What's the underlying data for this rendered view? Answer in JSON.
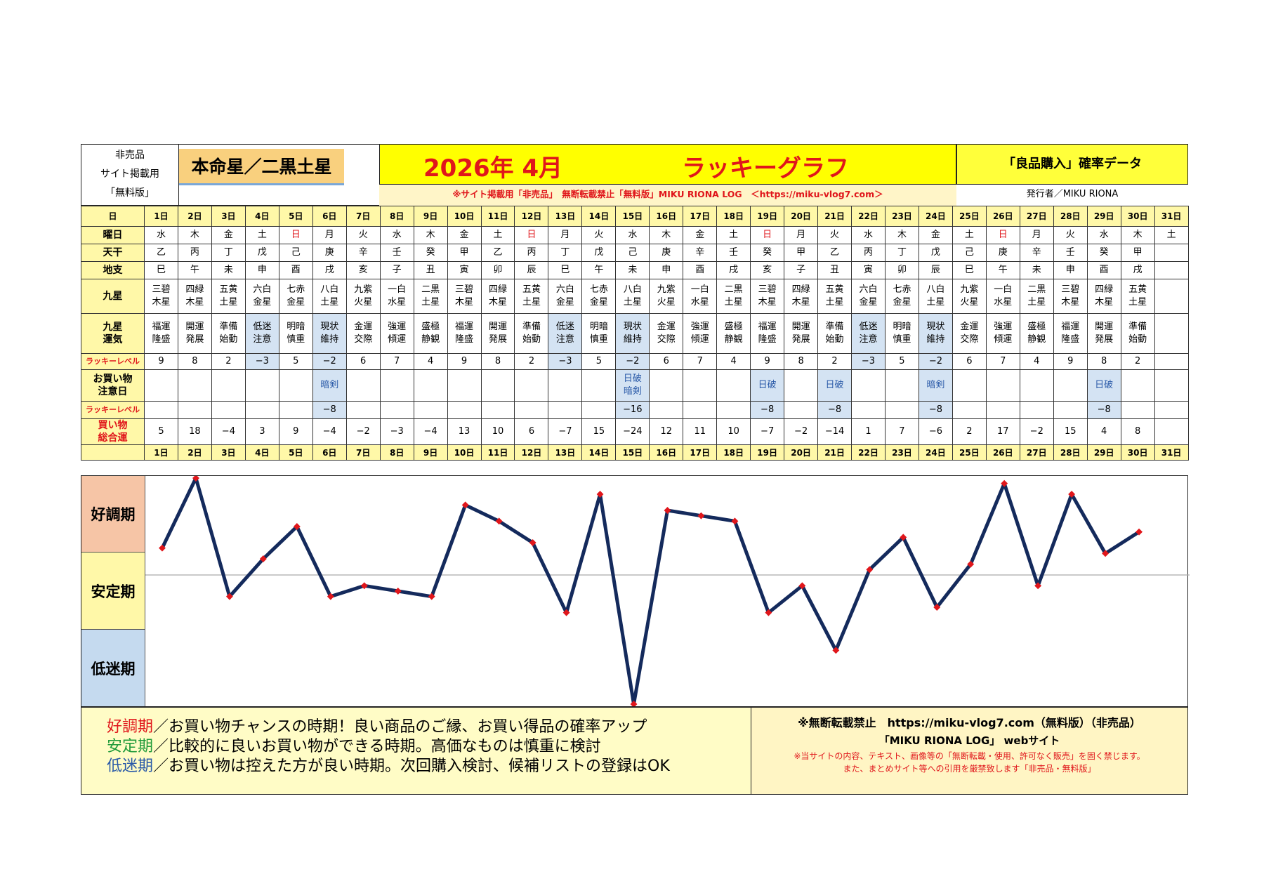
{
  "header": {
    "left_lines": [
      "非売品",
      "サイト掲載用",
      "「無料版」"
    ],
    "honmei": "本命星／二黒土星",
    "year_month": "2026年 4月",
    "graph_title": "ラッキーグラフ",
    "right_title": "「良品購入」確率データ",
    "notice": "※サイト掲載用「非売品」　無断転載禁止「無料版」MIKU RIONA LOG　＜https://miku-vlog7.com＞",
    "publisher": "発行者／MIKU RIONA"
  },
  "row_labels": {
    "day": "日",
    "weekday": "曜日",
    "tenkan": "天干",
    "chishi": "地支",
    "kyusei": [
      "九",
      "星"
    ],
    "kyusei_unki": [
      "九星",
      "運気"
    ],
    "lucky_level": "ラッキーレベル",
    "shopping_caution": [
      "お買い物",
      "注意日"
    ],
    "lucky_level2": "ラッキーレベル",
    "total": [
      "買い物",
      "総合運"
    ]
  },
  "days": [
    "1日",
    "2日",
    "3日",
    "4日",
    "5日",
    "6日",
    "7日",
    "8日",
    "9日",
    "10日",
    "11日",
    "12日",
    "13日",
    "14日",
    "15日",
    "16日",
    "17日",
    "18日",
    "19日",
    "20日",
    "21日",
    "22日",
    "23日",
    "24日",
    "25日",
    "26日",
    "27日",
    "28日",
    "29日",
    "30日",
    "31日"
  ],
  "weekdays": [
    "水",
    "木",
    "金",
    "土",
    "日",
    "月",
    "火",
    "水",
    "木",
    "金",
    "土",
    "日",
    "月",
    "火",
    "水",
    "木",
    "金",
    "土",
    "日",
    "月",
    "火",
    "水",
    "木",
    "金",
    "土",
    "日",
    "月",
    "火",
    "水",
    "木",
    "土"
  ],
  "tenkan": [
    "乙",
    "丙",
    "丁",
    "戊",
    "己",
    "庚",
    "辛",
    "壬",
    "癸",
    "甲",
    "乙",
    "丙",
    "丁",
    "戊",
    "己",
    "庚",
    "辛",
    "壬",
    "癸",
    "甲",
    "乙",
    "丙",
    "丁",
    "戊",
    "己",
    "庚",
    "辛",
    "壬",
    "癸",
    "甲",
    ""
  ],
  "chishi": [
    "巳",
    "午",
    "未",
    "申",
    "酉",
    "戌",
    "亥",
    "子",
    "丑",
    "寅",
    "卯",
    "辰",
    "巳",
    "午",
    "未",
    "申",
    "酉",
    "戌",
    "亥",
    "子",
    "丑",
    "寅",
    "卯",
    "辰",
    "巳",
    "午",
    "未",
    "申",
    "酉",
    "戌",
    ""
  ],
  "kyusei": [
    [
      "三碧",
      "木星"
    ],
    [
      "四緑",
      "木星"
    ],
    [
      "五黄",
      "土星"
    ],
    [
      "六白",
      "金星"
    ],
    [
      "七赤",
      "金星"
    ],
    [
      "八白",
      "土星"
    ],
    [
      "九紫",
      "火星"
    ],
    [
      "一白",
      "水星"
    ],
    [
      "二黒",
      "土星"
    ],
    [
      "三碧",
      "木星"
    ],
    [
      "四緑",
      "木星"
    ],
    [
      "五黄",
      "土星"
    ],
    [
      "六白",
      "金星"
    ],
    [
      "七赤",
      "金星"
    ],
    [
      "八白",
      "土星"
    ],
    [
      "九紫",
      "火星"
    ],
    [
      "一白",
      "水星"
    ],
    [
      "二黒",
      "土星"
    ],
    [
      "三碧",
      "木星"
    ],
    [
      "四緑",
      "木星"
    ],
    [
      "五黄",
      "土星"
    ],
    [
      "六白",
      "金星"
    ],
    [
      "七赤",
      "金星"
    ],
    [
      "八白",
      "土星"
    ],
    [
      "九紫",
      "火星"
    ],
    [
      "一白",
      "水星"
    ],
    [
      "二黒",
      "土星"
    ],
    [
      "三碧",
      "木星"
    ],
    [
      "四緑",
      "木星"
    ],
    [
      "五黄",
      "土星"
    ],
    [
      "",
      ""
    ]
  ],
  "unki": [
    [
      "福運",
      "隆盛"
    ],
    [
      "開運",
      "発展"
    ],
    [
      "準備",
      "始動"
    ],
    [
      "低迷",
      "注意"
    ],
    [
      "明暗",
      "慎重"
    ],
    [
      "現状",
      "維持"
    ],
    [
      "金運",
      "交際"
    ],
    [
      "強運",
      "傾運"
    ],
    [
      "盛極",
      "静観"
    ],
    [
      "福運",
      "隆盛"
    ],
    [
      "開運",
      "発展"
    ],
    [
      "準備",
      "始動"
    ],
    [
      "低迷",
      "注意"
    ],
    [
      "明暗",
      "慎重"
    ],
    [
      "現状",
      "維持"
    ],
    [
      "金運",
      "交際"
    ],
    [
      "強運",
      "傾運"
    ],
    [
      "盛極",
      "静観"
    ],
    [
      "福運",
      "隆盛"
    ],
    [
      "開運",
      "発展"
    ],
    [
      "準備",
      "始動"
    ],
    [
      "低迷",
      "注意"
    ],
    [
      "明暗",
      "慎重"
    ],
    [
      "現状",
      "維持"
    ],
    [
      "金運",
      "交際"
    ],
    [
      "強運",
      "傾運"
    ],
    [
      "盛極",
      "静観"
    ],
    [
      "福運",
      "隆盛"
    ],
    [
      "開運",
      "発展"
    ],
    [
      "準備",
      "始動"
    ],
    [
      "",
      ""
    ]
  ],
  "lucky_level": [
    "9",
    "8",
    "2",
    "−3",
    "5",
    "−2",
    "6",
    "7",
    "4",
    "9",
    "8",
    "2",
    "−3",
    "5",
    "−2",
    "6",
    "7",
    "4",
    "9",
    "8",
    "2",
    "−3",
    "5",
    "−2",
    "6",
    "7",
    "4",
    "9",
    "8",
    "2",
    ""
  ],
  "caution": [
    [
      ""
    ],
    [
      ""
    ],
    [
      ""
    ],
    [
      ""
    ],
    [
      ""
    ],
    [
      "暗剣"
    ],
    [
      ""
    ],
    [
      ""
    ],
    [
      ""
    ],
    [
      ""
    ],
    [
      ""
    ],
    [
      ""
    ],
    [
      ""
    ],
    [
      ""
    ],
    [
      "日破",
      "暗剣"
    ],
    [
      ""
    ],
    [
      ""
    ],
    [
      ""
    ],
    [
      "日破"
    ],
    [
      ""
    ],
    [
      "日破"
    ],
    [
      ""
    ],
    [
      ""
    ],
    [
      "暗剣"
    ],
    [
      ""
    ],
    [
      ""
    ],
    [
      ""
    ],
    [
      ""
    ],
    [
      "日破"
    ],
    [
      ""
    ],
    [
      ""
    ]
  ],
  "lucky_level2": [
    "",
    "",
    "",
    "",
    "",
    "−8",
    "",
    "",
    "",
    "",
    "",
    "",
    "",
    "",
    "−16",
    "",
    "",
    "",
    "−8",
    "",
    "−8",
    "",
    "",
    "−8",
    "",
    "",
    "",
    "",
    "−8",
    "",
    ""
  ],
  "total": [
    "5",
    "18",
    "−4",
    "3",
    "9",
    "−4",
    "−2",
    "−3",
    "−4",
    "13",
    "10",
    "6",
    "−7",
    "15",
    "−24",
    "12",
    "11",
    "10",
    "−7",
    "−2",
    "−14",
    "1",
    "7",
    "−6",
    "2",
    "17",
    "−2",
    "15",
    "4",
    "8",
    ""
  ],
  "zones": [
    "好調期",
    "安定期",
    "低迷期"
  ],
  "chart_data": {
    "type": "line",
    "x": [
      "1日",
      "2日",
      "3日",
      "4日",
      "5日",
      "6日",
      "7日",
      "8日",
      "9日",
      "10日",
      "11日",
      "12日",
      "13日",
      "14日",
      "15日",
      "16日",
      "17日",
      "18日",
      "19日",
      "20日",
      "21日",
      "22日",
      "23日",
      "24日",
      "25日",
      "26日",
      "27日",
      "28日",
      "29日",
      "30日"
    ],
    "series": [
      {
        "values": [
          5,
          18,
          -4,
          3,
          9,
          -4,
          -2,
          -3,
          -4,
          13,
          10,
          6,
          -7,
          15,
          -24,
          12,
          11,
          10,
          -7,
          -2,
          -14,
          1,
          7,
          -6,
          2,
          17,
          -2,
          15,
          4,
          8
        ]
      }
    ],
    "ylim": [
      -24,
      18
    ],
    "grid": false,
    "line_color": "#142a5c",
    "marker_color": "#e0161b",
    "zone_colors": [
      "#f6c5a6",
      "#fff8a8",
      "#c5daef"
    ]
  },
  "footer": {
    "lines": [
      {
        "term": "好調期",
        "color": "#e0161b",
        "text": "／お買い物チャンスの時期！良い商品のご縁、お買い得品の確率アップ"
      },
      {
        "term": "安定期",
        "color": "#1f9a3a",
        "text": "／比較的に良いお買い物ができる時期。高価なものは慎重に検討"
      },
      {
        "term": "低迷期",
        "color": "#2a5aa8",
        "text": "／お買い物は控えた方が良い時期。次回購入検討、候補リストの登録はOK"
      }
    ],
    "right_line1": "※無断転載禁止　https://miku-vlog7.com（無料版）（非売品）",
    "right_line2": "「MIKU RIONA LOG」 webサイト",
    "right_line3": "※当サイトの内容、テキスト、画像等の「無断転載・使用、許可なく販売」を固く禁じます。",
    "right_line4": "また、まとめサイト等への引用を厳禁致します「非売品・無料版」"
  }
}
